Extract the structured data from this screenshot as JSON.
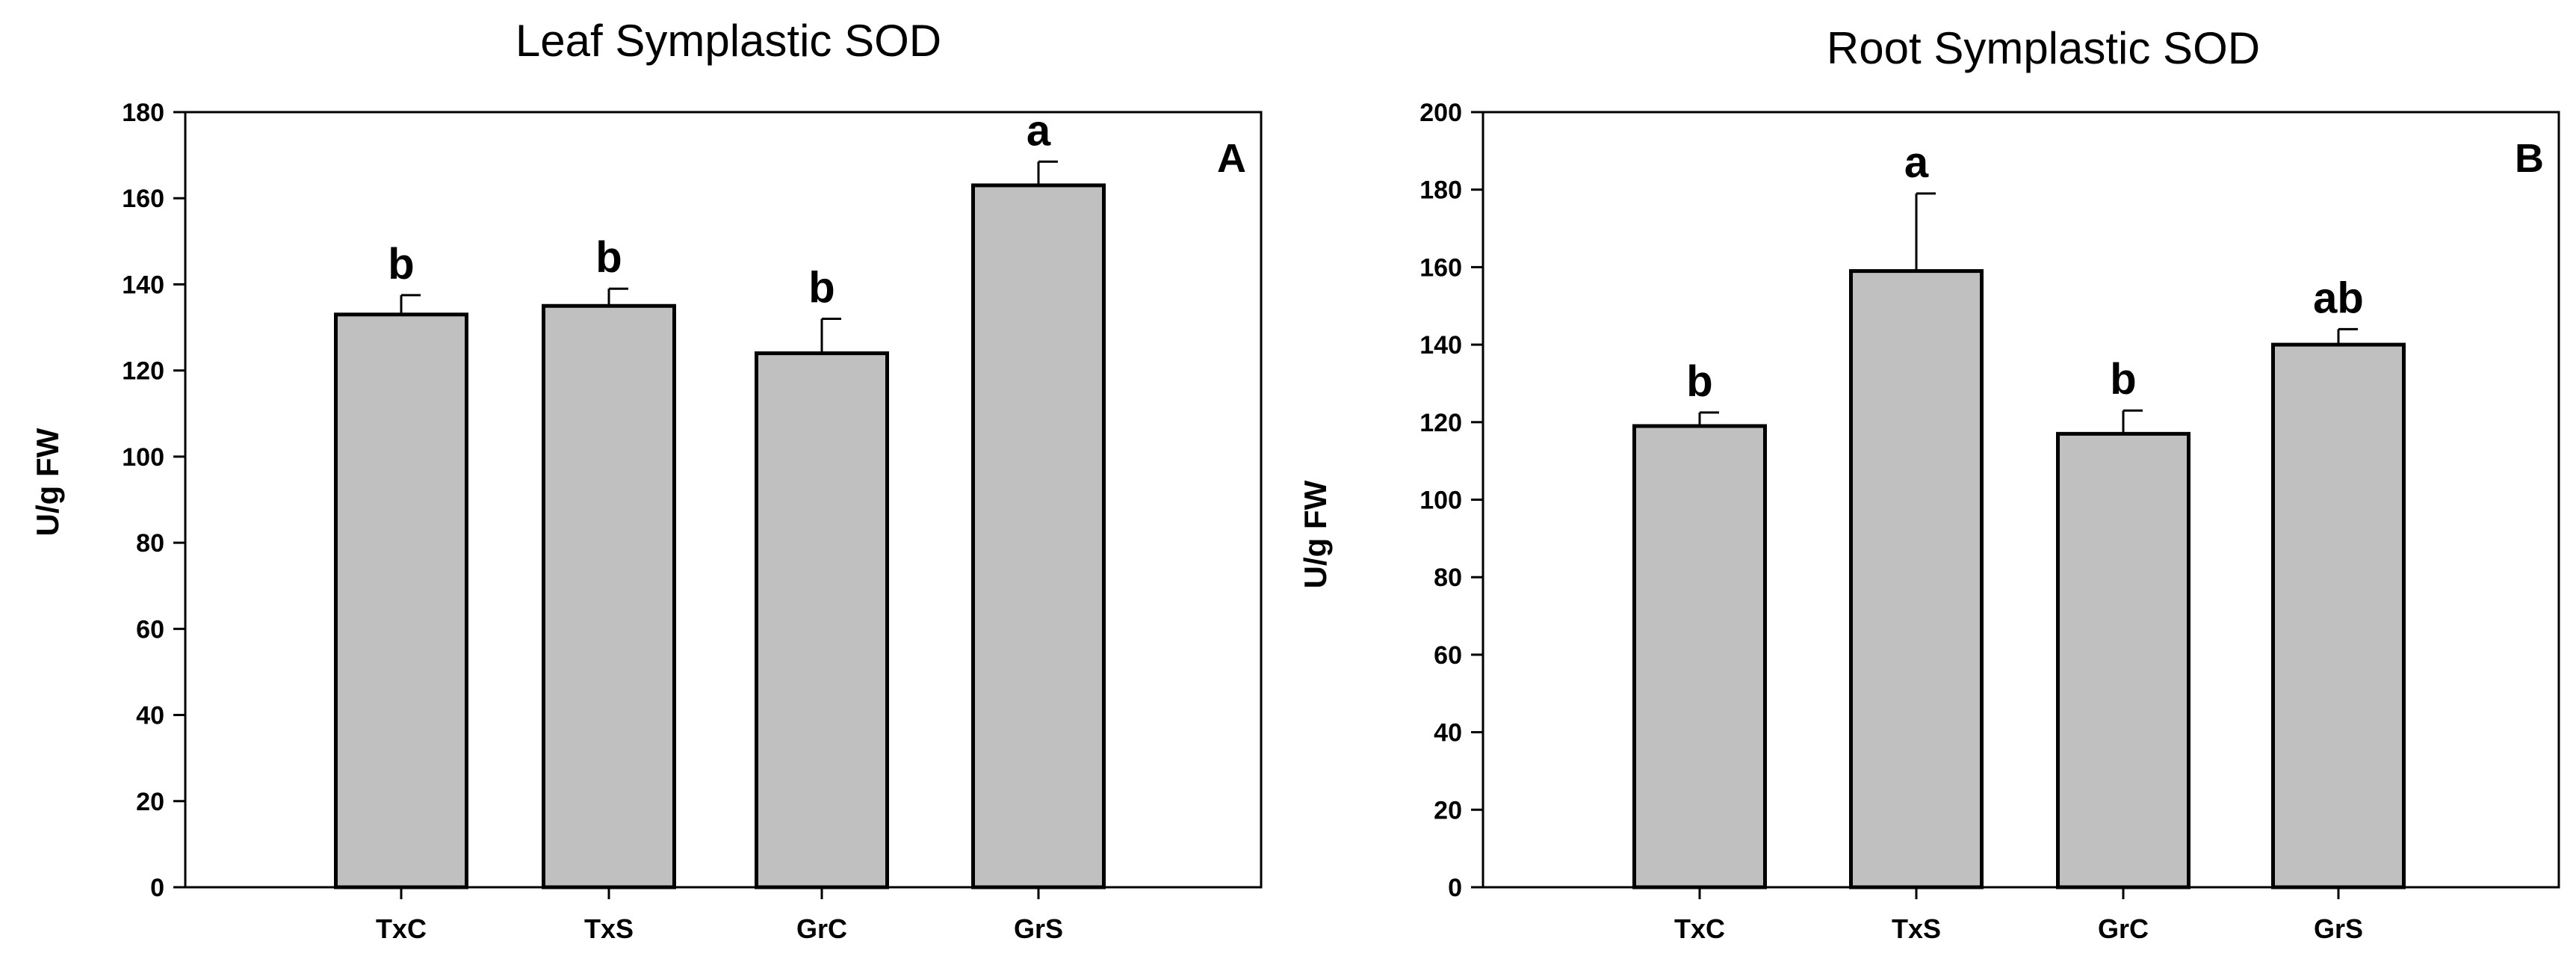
{
  "chart_data": [
    {
      "type": "bar",
      "title": "Leaf Symplastic SOD",
      "panel_label": "A",
      "ylabel": "U/g FW",
      "xlabel": "",
      "ylim": [
        0,
        180
      ],
      "yticks": [
        0,
        20,
        40,
        60,
        80,
        100,
        120,
        140,
        160,
        180
      ],
      "categories": [
        "TxC",
        "TxS",
        "GrC",
        "GrS"
      ],
      "values": [
        133,
        135,
        124,
        163
      ],
      "errors": [
        4.5,
        4,
        8,
        5.5
      ],
      "significance": [
        "b",
        "b",
        "b",
        "a"
      ],
      "bar_color": "#c0c0c0",
      "grid": false
    },
    {
      "type": "bar",
      "title": "Root Symplastic SOD",
      "panel_label": "B",
      "ylabel": "U/g FW",
      "xlabel": "",
      "ylim": [
        0,
        200
      ],
      "yticks": [
        0,
        20,
        40,
        60,
        80,
        100,
        120,
        140,
        160,
        180,
        200
      ],
      "categories": [
        "TxC",
        "TxS",
        "GrC",
        "GrS"
      ],
      "values": [
        119,
        159,
        117,
        140
      ],
      "errors": [
        3.5,
        20,
        6,
        4
      ],
      "significance": [
        "b",
        "a",
        "b",
        "ab"
      ],
      "bar_color": "#c0c0c0",
      "grid": false
    }
  ]
}
